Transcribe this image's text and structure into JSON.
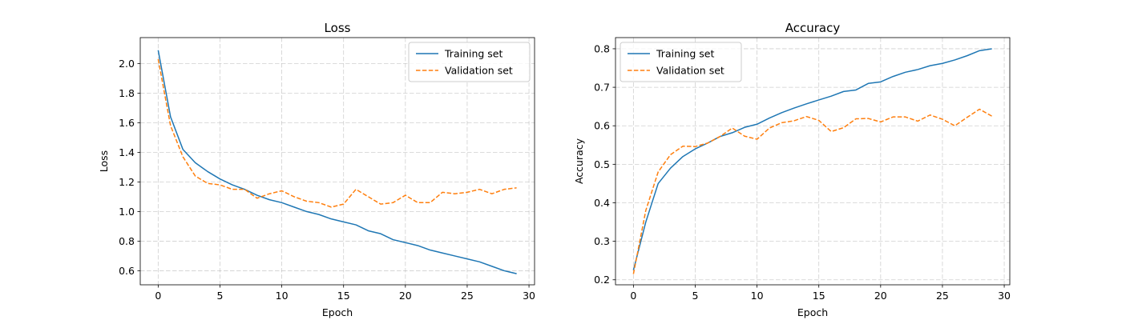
{
  "colors": {
    "training": "#1f77b4",
    "validation": "#ff7f0e",
    "grid": "#b0b0b0",
    "axes": "#000000"
  },
  "chart_data": [
    {
      "type": "line",
      "title": "Loss",
      "xlabel": "Epoch",
      "ylabel": "Loss",
      "xlim": [
        -1.45,
        30.45
      ],
      "ylim": [
        0.505,
        2.175
      ],
      "xticks": [
        0,
        5,
        10,
        15,
        20,
        25,
        30
      ],
      "xtick_labels": [
        "0",
        "5",
        "10",
        "15",
        "20",
        "25",
        "30"
      ],
      "yticks": [
        0.6,
        0.8,
        1.0,
        1.2,
        1.4,
        1.6,
        1.8,
        2.0
      ],
      "ytick_labels": [
        "0.6",
        "0.8",
        "1.0",
        "1.2",
        "1.4",
        "1.6",
        "1.8",
        "2.0"
      ],
      "grid": true,
      "legend": "upper right",
      "x": [
        0,
        1,
        2,
        3,
        4,
        5,
        6,
        7,
        8,
        9,
        10,
        11,
        12,
        13,
        14,
        15,
        16,
        17,
        18,
        19,
        20,
        21,
        22,
        23,
        24,
        25,
        26,
        27,
        28,
        29
      ],
      "series": [
        {
          "name": "Training set",
          "style": "solid",
          "values": [
            2.09,
            1.64,
            1.42,
            1.33,
            1.27,
            1.22,
            1.18,
            1.15,
            1.11,
            1.08,
            1.06,
            1.03,
            1.0,
            0.98,
            0.95,
            0.93,
            0.91,
            0.87,
            0.85,
            0.81,
            0.79,
            0.77,
            0.74,
            0.72,
            0.7,
            0.68,
            0.66,
            0.63,
            0.6,
            0.58
          ]
        },
        {
          "name": "Validation set",
          "style": "dashed",
          "values": [
            2.03,
            1.58,
            1.37,
            1.24,
            1.19,
            1.18,
            1.15,
            1.15,
            1.09,
            1.12,
            1.14,
            1.1,
            1.07,
            1.06,
            1.03,
            1.05,
            1.15,
            1.1,
            1.05,
            1.06,
            1.11,
            1.06,
            1.06,
            1.13,
            1.12,
            1.13,
            1.15,
            1.12,
            1.15,
            1.16
          ]
        }
      ]
    },
    {
      "type": "line",
      "title": "Accuracy",
      "xlabel": "Epoch",
      "ylabel": "Accuracy",
      "xlim": [
        -1.45,
        30.45
      ],
      "ylim": [
        0.187,
        0.829
      ],
      "xticks": [
        0,
        5,
        10,
        15,
        20,
        25,
        30
      ],
      "xtick_labels": [
        "0",
        "5",
        "10",
        "15",
        "20",
        "25",
        "30"
      ],
      "yticks": [
        0.2,
        0.3,
        0.4,
        0.5,
        0.6,
        0.7,
        0.8
      ],
      "ytick_labels": [
        "0.2",
        "0.3",
        "0.4",
        "0.5",
        "0.6",
        "0.7",
        "0.8"
      ],
      "grid": true,
      "legend": "upper left",
      "x": [
        0,
        1,
        2,
        3,
        4,
        5,
        6,
        7,
        8,
        9,
        10,
        11,
        12,
        13,
        14,
        15,
        16,
        17,
        18,
        19,
        20,
        21,
        22,
        23,
        24,
        25,
        26,
        27,
        28,
        29
      ],
      "series": [
        {
          "name": "Training set",
          "style": "solid",
          "values": [
            0.225,
            0.35,
            0.45,
            0.49,
            0.52,
            0.54,
            0.555,
            0.572,
            0.582,
            0.596,
            0.604,
            0.62,
            0.634,
            0.646,
            0.657,
            0.667,
            0.677,
            0.689,
            0.693,
            0.71,
            0.714,
            0.728,
            0.739,
            0.746,
            0.756,
            0.762,
            0.771,
            0.782,
            0.795,
            0.8
          ]
        },
        {
          "name": "Validation set",
          "style": "dashed",
          "values": [
            0.215,
            0.38,
            0.48,
            0.525,
            0.547,
            0.546,
            0.555,
            0.572,
            0.594,
            0.573,
            0.565,
            0.594,
            0.608,
            0.613,
            0.624,
            0.614,
            0.585,
            0.595,
            0.618,
            0.619,
            0.61,
            0.623,
            0.623,
            0.612,
            0.628,
            0.617,
            0.6,
            0.622,
            0.643,
            0.625
          ]
        }
      ]
    }
  ]
}
